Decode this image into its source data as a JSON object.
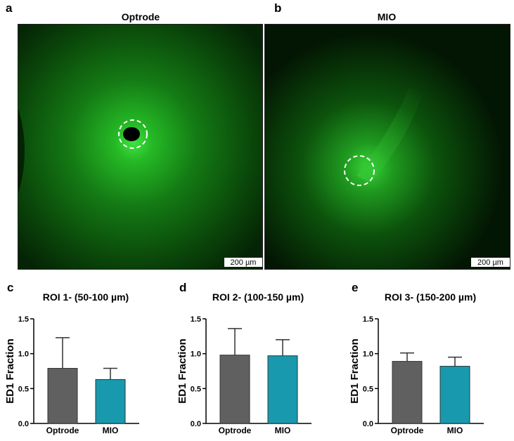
{
  "panels": {
    "a": {
      "letter": "a",
      "title": "Optrode",
      "scale_label": "200 µm"
    },
    "b": {
      "letter": "b",
      "title": "MIO",
      "scale_label": "200 µm"
    }
  },
  "colors": {
    "optrode": "#606060",
    "mio": "#1899ad",
    "fluorescence": "#2bd02b"
  },
  "chart_data": [
    {
      "letter": "c",
      "type": "bar",
      "title": "ROI 1- (50-100 µm)",
      "ylabel": "ED1 Fraction",
      "xlabel": "",
      "categories": [
        "Optrode",
        "MIO"
      ],
      "values": [
        0.79,
        0.63
      ],
      "error": [
        0.44,
        0.16
      ],
      "ylim": [
        0.0,
        1.5
      ],
      "yticks": [
        "0.0",
        "0.5",
        "1.0",
        "1.5"
      ]
    },
    {
      "letter": "d",
      "type": "bar",
      "title": "ROI 2- (100-150 µm)",
      "ylabel": "ED1 Fraction",
      "xlabel": "",
      "categories": [
        "Optrode",
        "MIO"
      ],
      "values": [
        0.98,
        0.97
      ],
      "error": [
        0.38,
        0.23
      ],
      "ylim": [
        0.0,
        1.5
      ],
      "yticks": [
        "0.0",
        "0.5",
        "1.0",
        "1.5"
      ]
    },
    {
      "letter": "e",
      "type": "bar",
      "title": "ROI 3- (150-200 µm)",
      "ylabel": "ED1 Fraction",
      "xlabel": "",
      "categories": [
        "Optrode",
        "MIO"
      ],
      "values": [
        0.89,
        0.82
      ],
      "error": [
        0.12,
        0.13
      ],
      "ylim": [
        0.0,
        1.5
      ],
      "yticks": [
        "0.0",
        "0.5",
        "1.0",
        "1.5"
      ]
    }
  ]
}
